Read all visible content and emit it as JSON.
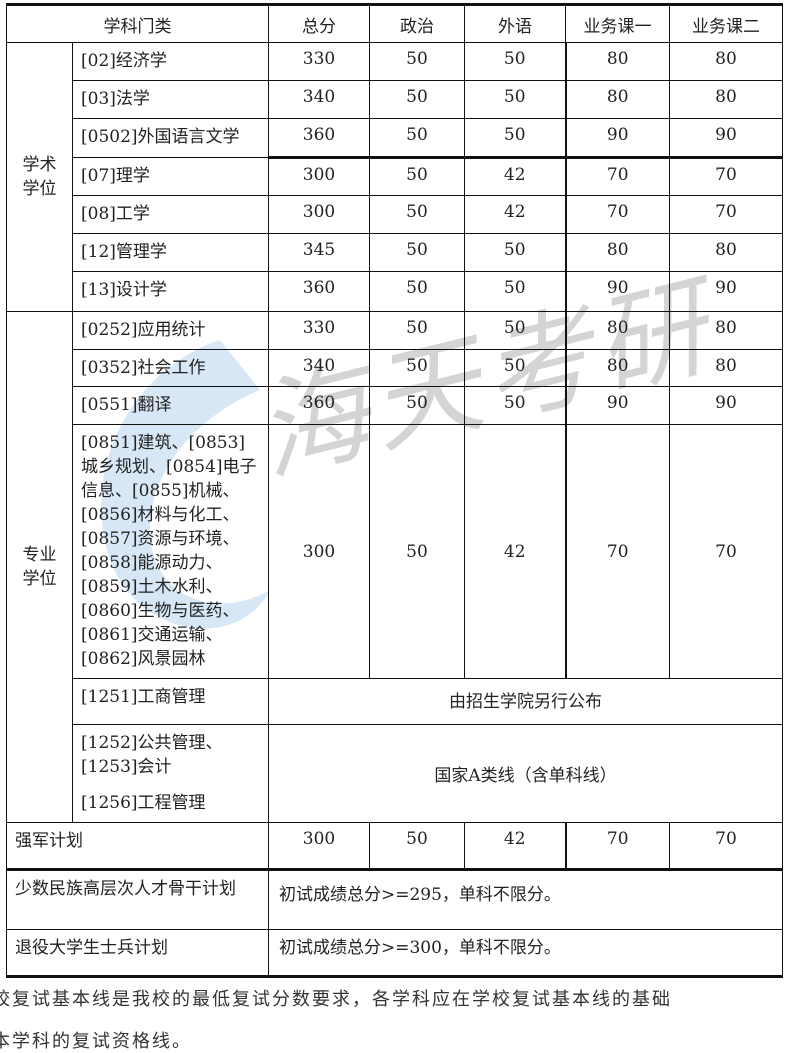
{
  "headers": [
    "学科门类",
    "总分",
    "政治",
    "外语",
    "业务课一",
    "业务课二"
  ],
  "academic": {
    "label": "学术学位",
    "rows": [
      {
        "name": "[02]经济学",
        "scores": [
          "330",
          "50",
          "50",
          "80",
          "80"
        ]
      },
      {
        "name": "[03]法学",
        "scores": [
          "340",
          "50",
          "50",
          "80",
          "80"
        ]
      },
      {
        "name": "[0502]外国语言文学",
        "scores": [
          "360",
          "50",
          "50",
          "90",
          "90"
        ]
      },
      {
        "name": "[07]理学",
        "scores": [
          "300",
          "50",
          "42",
          "70",
          "70"
        ]
      },
      {
        "name": "[08]工学",
        "scores": [
          "300",
          "50",
          "42",
          "70",
          "70"
        ]
      },
      {
        "name": "[12]管理学",
        "scores": [
          "345",
          "50",
          "50",
          "80",
          "80"
        ]
      },
      {
        "name": "[13]设计学",
        "scores": [
          "360",
          "50",
          "50",
          "90",
          "90"
        ]
      }
    ]
  },
  "professional": {
    "label": "专业学位",
    "rows": [
      {
        "name": "[0252]应用统计",
        "scores": [
          "330",
          "50",
          "50",
          "80",
          "80"
        ]
      },
      {
        "name": "[0352]社会工作",
        "scores": [
          "340",
          "50",
          "50",
          "80",
          "80"
        ]
      },
      {
        "name": "[0551]翻译",
        "scores": [
          "360",
          "50",
          "50",
          "90",
          "90"
        ]
      },
      {
        "name": "[0851]建筑、[0853]城乡规划、[0854]电子信息、[0855]机械、[0856]材料与化工、[0857]资源与环境、[0858]能源动力、[0859]土木水利、[0860]生物与医药、[0861]交通运输、[0862]风景园林",
        "scores": [
          "300",
          "50",
          "42",
          "70",
          "70"
        ]
      }
    ],
    "mba": {
      "name": "[1251]工商管理",
      "note": "由招生学院另行公布"
    },
    "mpa": {
      "name1": "[1252]公共管理、",
      "name2": "[1253]会计",
      "name3": "[1256]工程管理",
      "note": "国家A类线（含单科线）"
    }
  },
  "qiangjun": {
    "name": "强军计划",
    "scores": [
      "300",
      "50",
      "42",
      "70",
      "70"
    ]
  },
  "minority": {
    "name": "少数民族高层次人才骨干计划",
    "note": "初试成绩总分>=295，单科不限分。"
  },
  "veteran": {
    "name": "退役大学生士兵计划",
    "note": "初试成绩总分>=300，单科不限分。"
  },
  "footnote": {
    "line1": "校复试基本线是我校的最低复试分数要求，各学科应在学校复试基本线的基础",
    "line2": "本学科的复试资格线。"
  },
  "watermark": "海天考研",
  "colors": {
    "watermark_gray": "#9a9a9a",
    "logo_blue": "#a9cbe6"
  }
}
